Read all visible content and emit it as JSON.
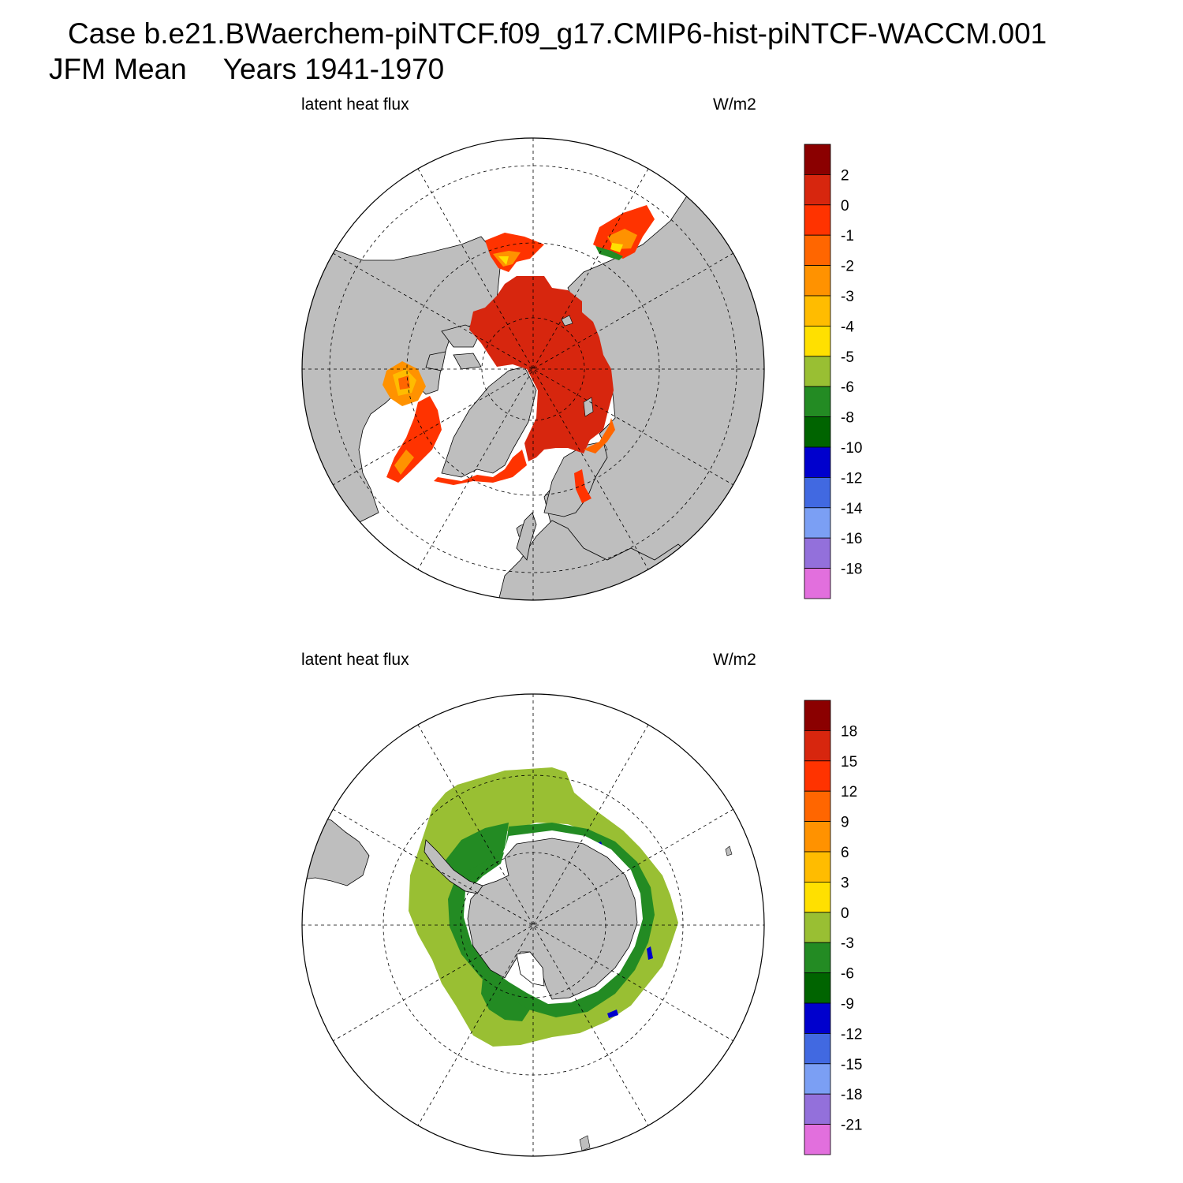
{
  "title": {
    "line1": "Case b.e21.BWaerchem-piNTCF.f09_g17.CMIP6-hist-piNTCF-WACCM.001",
    "line2_left": "JFM Mean",
    "line2_right": "Years 1941-1970"
  },
  "panels": [
    {
      "id": "north",
      "left_label": "latent heat flux",
      "right_label": "W/m2",
      "colorbar": {
        "colors": [
          "#8b0000",
          "#d7260e",
          "#ff3300",
          "#ff6600",
          "#ff9200",
          "#ffbc00",
          "#ffe000",
          "#99bf33",
          "#238b23",
          "#006400",
          "#0000cd",
          "#4169e1",
          "#7b9ff4",
          "#9370db",
          "#e26fdd"
        ],
        "labels": [
          "2",
          "0",
          "-1",
          "-2",
          "-3",
          "-4",
          "-5",
          "-6",
          "-8",
          "-10",
          "-12",
          "-14",
          "-16",
          "-18"
        ]
      }
    },
    {
      "id": "south",
      "left_label": "latent heat flux",
      "right_label": "W/m2",
      "colorbar": {
        "colors": [
          "#8b0000",
          "#d7260e",
          "#ff3300",
          "#ff6600",
          "#ff9200",
          "#ffbc00",
          "#ffe000",
          "#99bf33",
          "#238b23",
          "#006400",
          "#0000cd",
          "#4169e1",
          "#7b9ff4",
          "#9370db",
          "#e26fdd"
        ],
        "labels": [
          "18",
          "15",
          "12",
          "9",
          "6",
          "3",
          "0",
          "-3",
          "-6",
          "-9",
          "-12",
          "-15",
          "-18",
          "-21"
        ]
      }
    }
  ]
}
